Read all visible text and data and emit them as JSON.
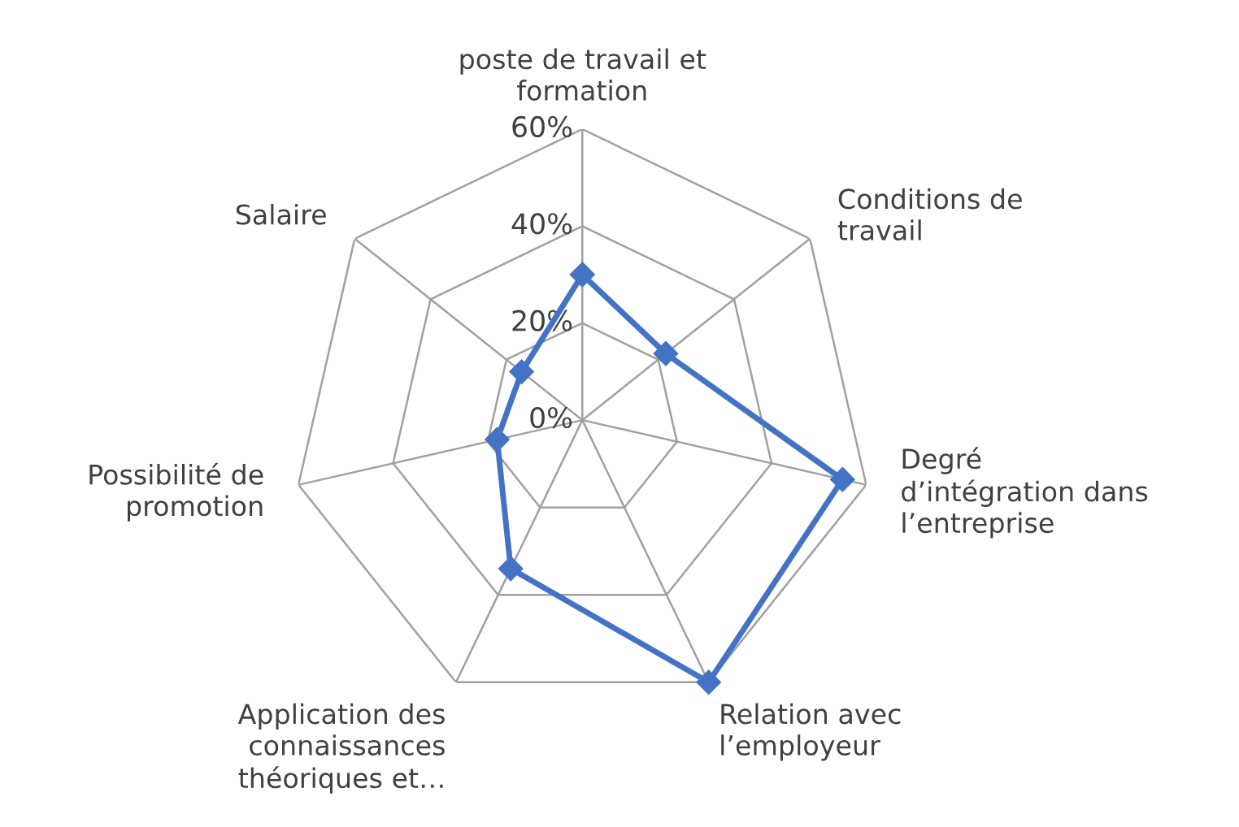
{
  "chart_data": {
    "type": "radar",
    "categories": [
      "poste de travail et\nformation",
      "Conditions de\ntravail",
      "Degré\nd’intégration dans\nl’entreprise",
      "Relation avec\nl’employeur",
      "Application des\nconnaissances\nthéoriques et…",
      "Possibilité de\npromotion",
      "Salaire"
    ],
    "series": [
      {
        "color": "#4472c4",
        "values": [
          30,
          22,
          55,
          60,
          34,
          18,
          16
        ]
      }
    ],
    "ylim": [
      0,
      60
    ],
    "yticks": [
      {
        "value": 0,
        "label": "0%"
      },
      {
        "value": 20,
        "label": "20%"
      },
      {
        "value": 40,
        "label": "40%"
      },
      {
        "value": 60,
        "label": "60%"
      }
    ],
    "grid": true,
    "marker": "diamond",
    "line_style": "solid"
  }
}
